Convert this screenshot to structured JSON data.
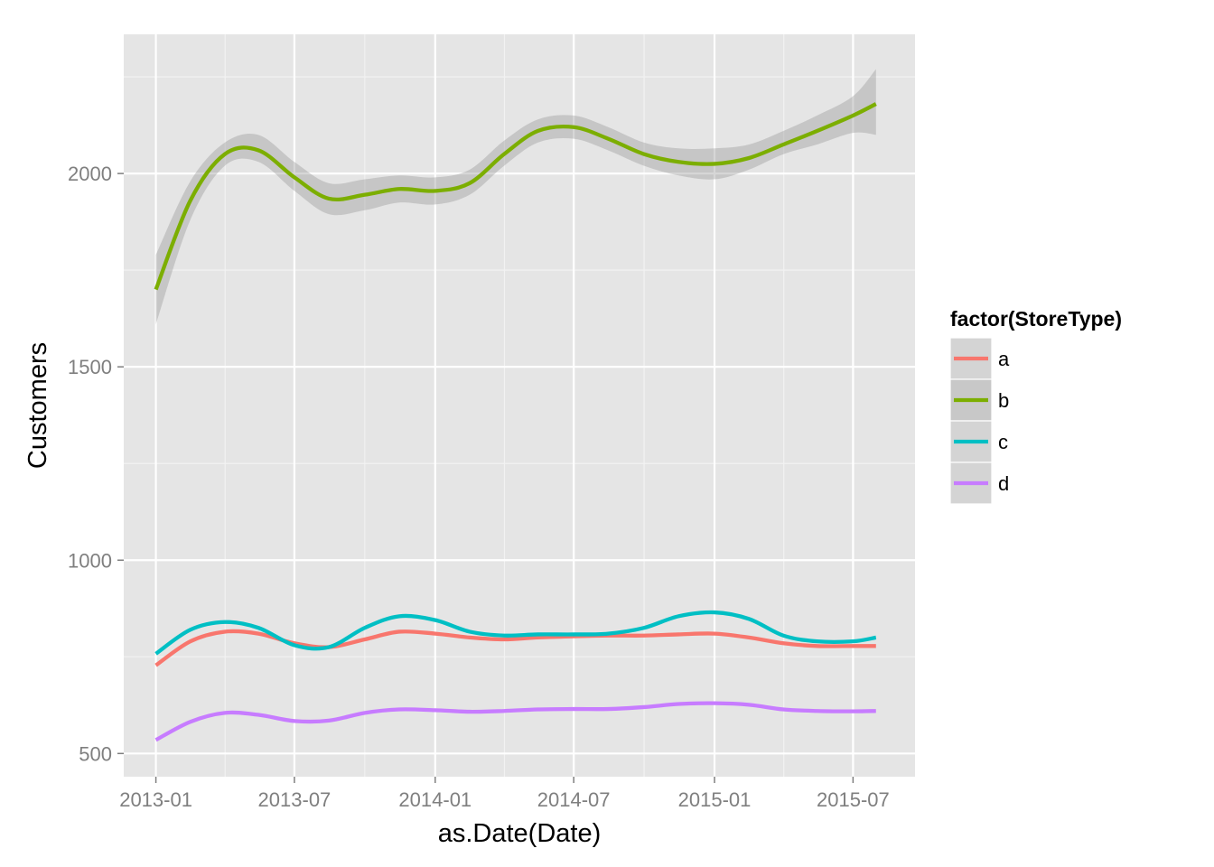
{
  "chart_data": {
    "type": "line",
    "title": "",
    "xlabel": "as.Date(Date)",
    "ylabel": "Customers",
    "x_ticks": [
      "2013-01",
      "2013-07",
      "2014-01",
      "2014-07",
      "2015-01",
      "2015-07"
    ],
    "x_tick_dates": [
      "2013-01-01",
      "2013-07-01",
      "2014-01-01",
      "2014-07-01",
      "2015-01-01",
      "2015-07-01"
    ],
    "y_ticks": [
      500,
      1000,
      1500,
      2000
    ],
    "xlim": [
      "2012-11-20",
      "2015-09-20"
    ],
    "ylim": [
      440,
      2360
    ],
    "grid": true,
    "legend": {
      "title": "factor(StoreType)",
      "position": "right"
    },
    "x": [
      "2013-01-01",
      "2013-02-15",
      "2013-04-01",
      "2013-05-15",
      "2013-07-01",
      "2013-08-15",
      "2013-10-01",
      "2013-11-15",
      "2014-01-01",
      "2014-02-15",
      "2014-04-01",
      "2014-05-15",
      "2014-07-01",
      "2014-08-15",
      "2014-10-01",
      "2014-11-15",
      "2015-01-01",
      "2015-02-15",
      "2015-04-01",
      "2015-05-15",
      "2015-07-01",
      "2015-07-31"
    ],
    "series": [
      {
        "name": "a",
        "color": "#F8766D",
        "values": [
          728,
          790,
          815,
          810,
          785,
          775,
          795,
          815,
          810,
          800,
          795,
          800,
          803,
          805,
          805,
          808,
          810,
          800,
          785,
          778,
          778,
          778
        ]
      },
      {
        "name": "b",
        "color": "#7CAE00",
        "values": [
          1700,
          1930,
          2050,
          2060,
          1990,
          1935,
          1945,
          1960,
          1955,
          1975,
          2050,
          2110,
          2120,
          2090,
          2050,
          2030,
          2025,
          2040,
          2075,
          2110,
          2150,
          2180
        ],
        "band_lower": [
          1610,
          1880,
          2020,
          2030,
          1955,
          1895,
          1905,
          1925,
          1920,
          1945,
          2020,
          2080,
          2090,
          2060,
          2020,
          1995,
          1985,
          2010,
          2050,
          2075,
          2105,
          2100
        ],
        "band_upper": [
          1790,
          1980,
          2080,
          2100,
          2030,
          1975,
          1985,
          1995,
          1990,
          2010,
          2085,
          2140,
          2150,
          2120,
          2080,
          2065,
          2065,
          2075,
          2110,
          2150,
          2200,
          2270
        ]
      },
      {
        "name": "c",
        "color": "#00BFC4",
        "values": [
          758,
          820,
          840,
          825,
          780,
          775,
          825,
          855,
          845,
          815,
          805,
          808,
          808,
          810,
          825,
          855,
          865,
          848,
          805,
          790,
          790,
          800
        ]
      },
      {
        "name": "d",
        "color": "#C77CFF",
        "values": [
          535,
          582,
          605,
          600,
          584,
          585,
          605,
          614,
          612,
          608,
          610,
          614,
          615,
          615,
          620,
          628,
          630,
          626,
          614,
          610,
          609,
          610
        ]
      }
    ]
  }
}
